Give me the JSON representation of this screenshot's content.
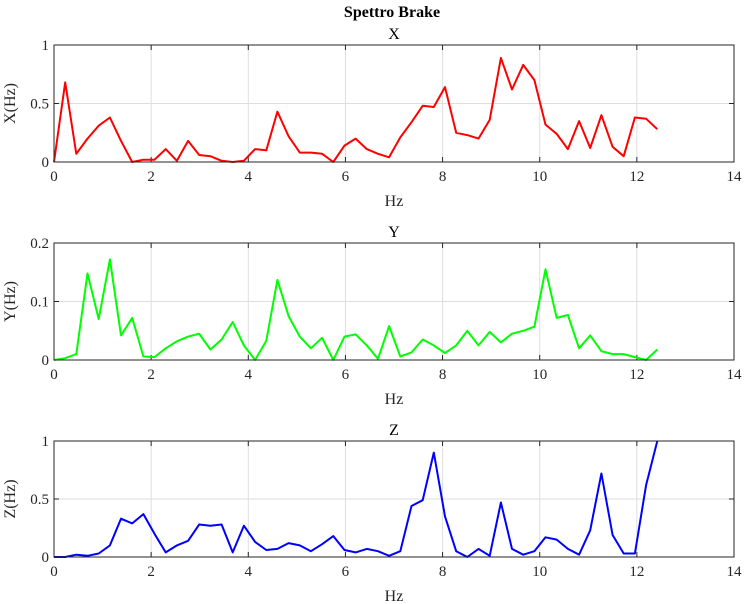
{
  "figure_title": "Spettro Brake",
  "chart_data": [
    {
      "type": "line",
      "title": "X",
      "xlabel": "Hz",
      "ylabel": "X(Hz)",
      "xlim": [
        0,
        14
      ],
      "ylim": [
        0,
        1
      ],
      "xticks": [
        "0",
        "2",
        "4",
        "6",
        "8",
        "10",
        "12",
        "14"
      ],
      "yticks": [
        "0",
        "0.5",
        "1"
      ],
      "grid": true,
      "color": "#ff0000",
      "x": [
        0.0,
        0.23,
        0.46,
        0.69,
        0.92,
        1.15,
        1.38,
        1.61,
        1.84,
        2.07,
        2.3,
        2.53,
        2.76,
        2.99,
        3.22,
        3.45,
        3.68,
        3.91,
        4.14,
        4.37,
        4.6,
        4.83,
        5.06,
        5.29,
        5.52,
        5.75,
        5.98,
        6.21,
        6.44,
        6.67,
        6.9,
        7.13,
        7.36,
        7.59,
        7.82,
        8.05,
        8.28,
        8.51,
        8.74,
        8.97,
        9.2,
        9.43,
        9.66,
        9.89,
        10.12,
        10.35,
        10.58,
        10.81,
        11.04,
        11.27,
        11.5,
        11.73,
        11.96,
        12.19,
        12.42
      ],
      "y": [
        0.0,
        0.68,
        0.07,
        0.2,
        0.31,
        0.38,
        0.18,
        0.0,
        0.02,
        0.02,
        0.11,
        0.01,
        0.18,
        0.06,
        0.05,
        0.01,
        0.0,
        0.01,
        0.11,
        0.1,
        0.43,
        0.22,
        0.08,
        0.08,
        0.07,
        0.0,
        0.14,
        0.2,
        0.11,
        0.07,
        0.04,
        0.21,
        0.34,
        0.48,
        0.47,
        0.64,
        0.25,
        0.23,
        0.2,
        0.36,
        0.89,
        0.62,
        0.83,
        0.7,
        0.32,
        0.24,
        0.11,
        0.35,
        0.12,
        0.4,
        0.13,
        0.05,
        0.38,
        0.37,
        0.28
      ]
    },
    {
      "type": "line",
      "title": "Y",
      "xlabel": "Hz",
      "ylabel": "Y(Hz)",
      "xlim": [
        0,
        14
      ],
      "ylim": [
        0,
        0.2
      ],
      "xticks": [
        "0",
        "2",
        "4",
        "6",
        "8",
        "10",
        "12",
        "14"
      ],
      "yticks": [
        "0",
        "0.1",
        "0.2"
      ],
      "grid": true,
      "color": "#00ff00",
      "x": [
        0.0,
        0.23,
        0.46,
        0.69,
        0.92,
        1.15,
        1.38,
        1.61,
        1.84,
        2.07,
        2.3,
        2.53,
        2.76,
        2.99,
        3.22,
        3.45,
        3.68,
        3.91,
        4.14,
        4.37,
        4.6,
        4.83,
        5.06,
        5.29,
        5.52,
        5.75,
        5.98,
        6.21,
        6.44,
        6.67,
        6.9,
        7.13,
        7.36,
        7.59,
        7.82,
        8.05,
        8.28,
        8.51,
        8.74,
        8.97,
        9.2,
        9.43,
        9.66,
        9.89,
        10.12,
        10.35,
        10.58,
        10.81,
        11.04,
        11.27,
        11.5,
        11.73,
        11.96,
        12.19,
        12.42
      ],
      "y": [
        0.0,
        0.003,
        0.01,
        0.148,
        0.07,
        0.172,
        0.042,
        0.072,
        0.006,
        0.005,
        0.02,
        0.032,
        0.04,
        0.045,
        0.018,
        0.035,
        0.065,
        0.025,
        0.0,
        0.033,
        0.137,
        0.075,
        0.04,
        0.02,
        0.038,
        0.0,
        0.04,
        0.044,
        0.025,
        0.002,
        0.058,
        0.006,
        0.013,
        0.035,
        0.025,
        0.012,
        0.025,
        0.05,
        0.025,
        0.048,
        0.03,
        0.045,
        0.05,
        0.057,
        0.155,
        0.072,
        0.077,
        0.02,
        0.042,
        0.015,
        0.01,
        0.01,
        0.005,
        0.0,
        0.018
      ]
    },
    {
      "type": "line",
      "title": "Z",
      "xlabel": "Hz",
      "ylabel": "Z(Hz)",
      "xlim": [
        0,
        14
      ],
      "ylim": [
        0,
        1
      ],
      "xticks": [
        "0",
        "2",
        "4",
        "6",
        "8",
        "10",
        "12",
        "14"
      ],
      "yticks": [
        "0",
        "0.5",
        "1"
      ],
      "grid": true,
      "color": "#0000ff",
      "x": [
        0.0,
        0.23,
        0.46,
        0.69,
        0.92,
        1.15,
        1.38,
        1.61,
        1.84,
        2.07,
        2.3,
        2.53,
        2.76,
        2.99,
        3.22,
        3.45,
        3.68,
        3.91,
        4.14,
        4.37,
        4.6,
        4.83,
        5.06,
        5.29,
        5.52,
        5.75,
        5.98,
        6.21,
        6.44,
        6.67,
        6.9,
        7.13,
        7.36,
        7.59,
        7.82,
        8.05,
        8.28,
        8.51,
        8.74,
        8.97,
        9.2,
        9.43,
        9.66,
        9.89,
        10.12,
        10.35,
        10.58,
        10.81,
        11.04,
        11.27,
        11.5,
        11.73,
        11.96,
        12.19,
        12.42
      ],
      "y": [
        0.0,
        0.0,
        0.02,
        0.01,
        0.03,
        0.1,
        0.33,
        0.29,
        0.37,
        0.2,
        0.04,
        0.1,
        0.14,
        0.28,
        0.27,
        0.28,
        0.04,
        0.27,
        0.13,
        0.06,
        0.07,
        0.12,
        0.1,
        0.05,
        0.11,
        0.18,
        0.06,
        0.04,
        0.07,
        0.05,
        0.01,
        0.05,
        0.44,
        0.49,
        0.9,
        0.35,
        0.05,
        0.0,
        0.07,
        0.01,
        0.47,
        0.07,
        0.02,
        0.05,
        0.17,
        0.15,
        0.07,
        0.02,
        0.23,
        0.72,
        0.19,
        0.03,
        0.03,
        0.62,
        1.0
      ]
    }
  ]
}
